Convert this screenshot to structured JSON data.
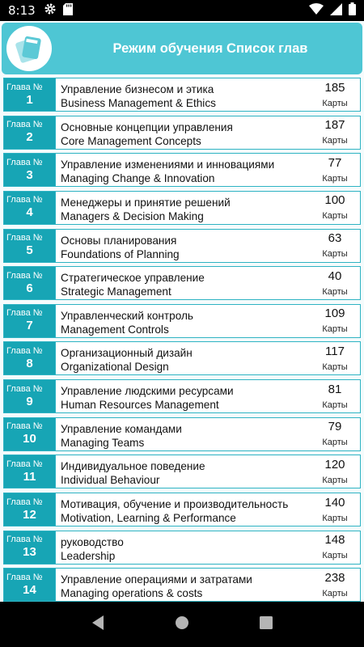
{
  "status_bar": {
    "time": "8:13",
    "icons": [
      "settings-icon",
      "sd-card-icon",
      "wifi-icon",
      "signal-icon",
      "battery-icon"
    ]
  },
  "header": {
    "title": "Режим обучения Список глав",
    "logo_icon": "flashcards-icon"
  },
  "colors": {
    "header_bg": "#4ec6d4",
    "badge_bg": "#17a5b5",
    "row_border": "#2eb3c3"
  },
  "chapters": [
    {
      "label": "Глава №",
      "number": "1",
      "title_ru": "Управление бизнесом и этика",
      "title_en": "Business Management & Ethics",
      "count": "185",
      "unit": "Карты"
    },
    {
      "label": "Глава №",
      "number": "2",
      "title_ru": "Основные концепции управления",
      "title_en": "Core Management Concepts",
      "count": "187",
      "unit": "Карты"
    },
    {
      "label": "Глава №",
      "number": "3",
      "title_ru": "Управление изменениями и инновациями",
      "title_en": "Managing Change & Innovation",
      "count": "77",
      "unit": "Карты"
    },
    {
      "label": "Глава №",
      "number": "4",
      "title_ru": "Менеджеры и принятие решений",
      "title_en": "Managers & Decision Making",
      "count": "100",
      "unit": "Карты"
    },
    {
      "label": "Глава №",
      "number": "5",
      "title_ru": "Основы планирования",
      "title_en": "Foundations of Planning",
      "count": "63",
      "unit": "Карты"
    },
    {
      "label": "Глава №",
      "number": "6",
      "title_ru": "Стратегическое управление",
      "title_en": "Strategic Management",
      "count": "40",
      "unit": "Карты"
    },
    {
      "label": "Глава №",
      "number": "7",
      "title_ru": "Управленческий контроль",
      "title_en": "Management Controls",
      "count": "109",
      "unit": "Карты"
    },
    {
      "label": "Глава №",
      "number": "8",
      "title_ru": "Организационный дизайн",
      "title_en": "Organizational Design",
      "count": "117",
      "unit": "Карты"
    },
    {
      "label": "Глава №",
      "number": "9",
      "title_ru": "Управление людскими ресурсами",
      "title_en": "Human Resources Management",
      "count": "81",
      "unit": "Карты"
    },
    {
      "label": "Глава №",
      "number": "10",
      "title_ru": "Управление командами",
      "title_en": "Managing Teams",
      "count": "79",
      "unit": "Карты"
    },
    {
      "label": "Глава №",
      "number": "11",
      "title_ru": "Индивидуальное поведение",
      "title_en": "Individual Behaviour",
      "count": "120",
      "unit": "Карты"
    },
    {
      "label": "Глава №",
      "number": "12",
      "title_ru": "Мотивация, обучение и производительность",
      "title_en": "Motivation, Learning & Performance",
      "count": "140",
      "unit": "Карты"
    },
    {
      "label": "Глава №",
      "number": "13",
      "title_ru": "руководство",
      "title_en": "Leadership",
      "count": "148",
      "unit": "Карты"
    },
    {
      "label": "Глава №",
      "number": "14",
      "title_ru": "Управление операциями и затратами",
      "title_en": "Managing operations & costs",
      "count": "238",
      "unit": "Карты"
    }
  ],
  "nav_bar": {
    "icons": [
      "back-icon",
      "home-icon",
      "recents-icon"
    ]
  }
}
